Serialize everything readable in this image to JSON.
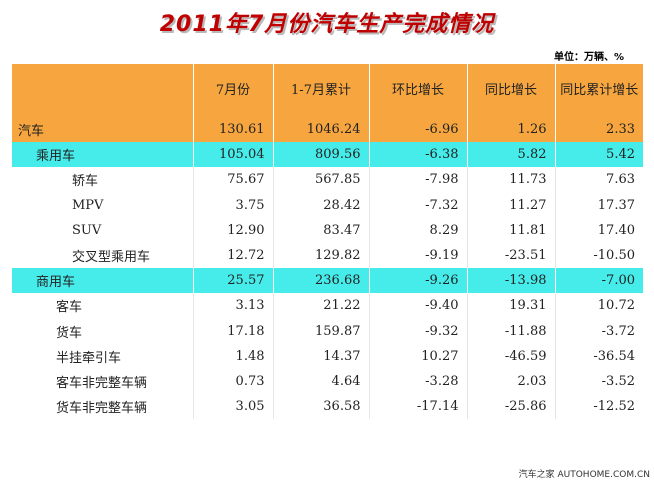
{
  "title": "2011年7月份汽车生产完成情况",
  "unit": "单位：万辆、%",
  "watermark": "汽车之家 AUTOHOME.COM.CN",
  "columns": [
    "",
    "7月份",
    "1-7月累计",
    "环比增长",
    "同比增长",
    "同比累计增长"
  ],
  "rows": [
    {
      "name": "汽车",
      "level": 0,
      "style": "car",
      "values": [
        "130.61",
        "1046.24",
        "-6.96",
        "1.26",
        "2.33"
      ]
    },
    {
      "name": "乘用车",
      "level": 1,
      "style": "cat",
      "values": [
        "105.04",
        "809.56",
        "-6.38",
        "5.82",
        "5.42"
      ]
    },
    {
      "name": "轿车",
      "level": 2,
      "style": "sub",
      "values": [
        "75.67",
        "567.85",
        "-7.98",
        "11.73",
        "7.63"
      ]
    },
    {
      "name": "MPV",
      "level": 2,
      "style": "sub",
      "values": [
        "3.75",
        "28.42",
        "-7.32",
        "11.27",
        "17.37"
      ]
    },
    {
      "name": "SUV",
      "level": 2,
      "style": "sub",
      "values": [
        "12.90",
        "83.47",
        "8.29",
        "11.81",
        "17.40"
      ]
    },
    {
      "name": "交叉型乘用车",
      "level": 2,
      "style": "sub",
      "values": [
        "12.72",
        "129.82",
        "-9.19",
        "-23.51",
        "-10.50"
      ]
    },
    {
      "name": "商用车",
      "level": 1,
      "style": "cat",
      "values": [
        "25.57",
        "236.68",
        "-9.26",
        "-13.98",
        "-7.00"
      ]
    },
    {
      "name": "客车",
      "level": 3,
      "style": "sub",
      "values": [
        "3.13",
        "21.22",
        "-9.40",
        "19.31",
        "10.72"
      ]
    },
    {
      "name": "货车",
      "level": 3,
      "style": "sub",
      "values": [
        "17.18",
        "159.87",
        "-9.32",
        "-11.88",
        "-3.72"
      ]
    },
    {
      "name": "半挂牵引车",
      "level": 3,
      "style": "sub",
      "values": [
        "1.48",
        "14.37",
        "10.27",
        "-46.59",
        "-36.54"
      ]
    },
    {
      "name": "客车非完整车辆",
      "level": 3,
      "style": "sub",
      "values": [
        "0.73",
        "4.64",
        "-3.28",
        "2.03",
        "-3.52"
      ]
    },
    {
      "name": "货车非完整车辆",
      "level": 3,
      "style": "sub",
      "values": [
        "3.05",
        "36.58",
        "-17.14",
        "-25.86",
        "-12.52"
      ]
    }
  ]
}
